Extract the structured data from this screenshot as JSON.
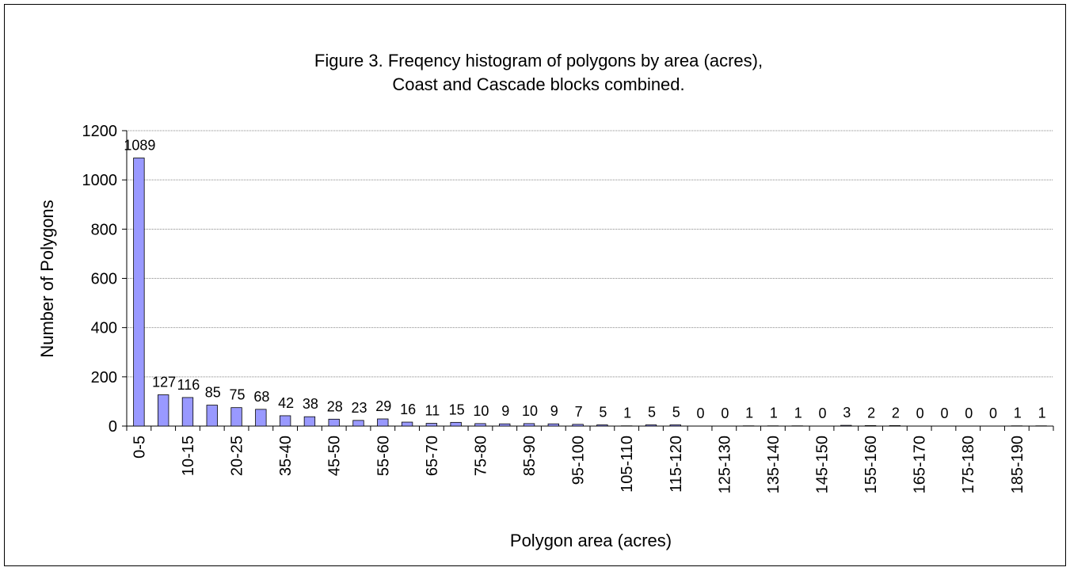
{
  "chart_data": {
    "type": "bar",
    "title": [
      "Figure 3.  Freqency histogram of polygons by area (acres),",
      "Coast and Cascade blocks combined."
    ],
    "x_label": "Polygon area (acres)",
    "y_label": "Number of Polygons",
    "categories": [
      "0-5",
      null,
      "10-15",
      null,
      "20-25",
      null,
      "35-40",
      null,
      "45-50",
      null,
      "55-60",
      null,
      "65-70",
      null,
      "75-80",
      null,
      "85-90",
      null,
      "95-100",
      null,
      "105-110",
      null,
      "115-120",
      null,
      "125-130",
      null,
      "135-140",
      null,
      "145-150",
      null,
      "155-160",
      null,
      "165-170",
      null,
      "175-180",
      null,
      "185-190",
      null
    ],
    "values": [
      1089,
      127,
      116,
      85,
      75,
      68,
      42,
      38,
      28,
      23,
      29,
      16,
      11,
      15,
      10,
      9,
      10,
      9,
      7,
      5,
      1,
      5,
      5,
      0,
      0,
      1,
      1,
      1,
      0,
      3,
      2,
      2,
      0,
      0,
      0,
      0,
      1,
      1
    ],
    "color": "#9999ff",
    "ylim": [
      0,
      1200
    ],
    "yticks": [
      0,
      200,
      400,
      600,
      800,
      1000,
      1200
    ],
    "grid": true
  }
}
